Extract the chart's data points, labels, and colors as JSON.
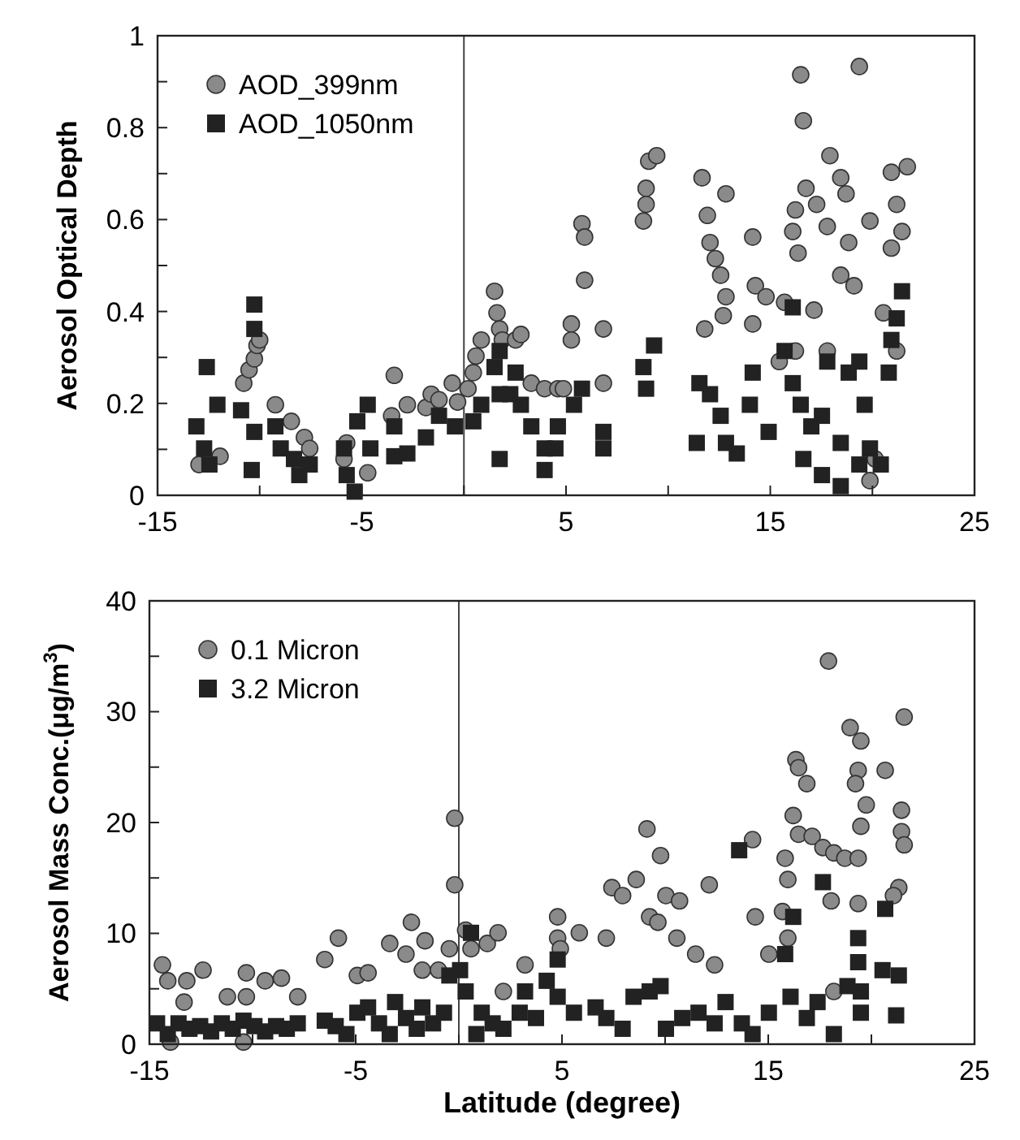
{
  "chart_data": [
    {
      "type": "scatter",
      "ylabel": "Aerosol Optical Depth",
      "xlim": [
        -15,
        25
      ],
      "xticks": [
        -15,
        {
          "value": -10,
          "label": null
        },
        -5,
        {
          "value": 0,
          "label": null
        },
        5,
        {
          "value": 10,
          "label": null
        },
        15,
        {
          "value": 20,
          "label": null
        },
        25
      ],
      "ylim": [
        0,
        1
      ],
      "yticks": [
        0,
        {
          "value": 0.1,
          "label": null
        },
        0.2,
        {
          "value": 0.3,
          "label": null
        },
        0.4,
        {
          "value": 0.5,
          "label": null
        },
        0.6,
        {
          "value": 0.7,
          "label": null
        },
        0.8,
        {
          "value": 0.9,
          "label": null
        },
        1
      ],
      "grid": false,
      "legend": "top left",
      "ref_lines": [
        {
          "axis": "x",
          "value": 0,
          "color": "#444444"
        }
      ],
      "series": [
        {
          "name": "AOD_399nm",
          "color": "#8a8a8a",
          "marker": "circle",
          "x": [
            -12.97,
            -11.94,
            -10.78,
            -10.52,
            -10.26,
            -10.13,
            -10.0,
            -9.23,
            -8.45,
            -7.81,
            -7.55,
            -5.87,
            -5.74,
            -4.71,
            -3.41,
            -3.54,
            -2.77,
            -1.86,
            -1.6,
            -1.22,
            -0.57,
            -0.31,
            0.2,
            0.46,
            0.59,
            0.85,
            1.5,
            1.62,
            1.75,
            1.88,
            2.53,
            2.79,
            3.3,
            3.95,
            4.6,
            4.87,
            5.78,
            5.91,
            5.91,
            5.26,
            5.26,
            6.83,
            6.83,
            8.79,
            8.92,
            9.05,
            9.44,
            8.92,
            11.66,
            11.92,
            12.83,
            12.05,
            12.31,
            12.57,
            12.83,
            12.7,
            14.14,
            14.27,
            14.79,
            15.7,
            11.79,
            14.14,
            16.49,
            16.62,
            16.75,
            16.23,
            16.36,
            16.1,
            17.27,
            17.92,
            18.45,
            18.71,
            17.79,
            18.84,
            18.45,
            19.36,
            19.88,
            19.1,
            20.54,
            17.14,
            20.93,
            21.19,
            21.45,
            21.71,
            20.93,
            21.19,
            20.14,
            19.88,
            15.44,
            16.23,
            17.79
          ],
          "values": [
            0.067,
            0.085,
            0.244,
            0.273,
            0.297,
            0.326,
            0.338,
            0.197,
            0.161,
            0.126,
            0.102,
            0.079,
            0.114,
            0.049,
            0.261,
            0.173,
            0.197,
            0.191,
            0.22,
            0.208,
            0.244,
            0.203,
            0.232,
            0.267,
            0.303,
            0.338,
            0.444,
            0.397,
            0.362,
            0.338,
            0.338,
            0.35,
            0.244,
            0.232,
            0.232,
            0.232,
            0.591,
            0.562,
            0.468,
            0.373,
            0.338,
            0.362,
            0.244,
            0.597,
            0.668,
            0.727,
            0.739,
            0.633,
            0.691,
            0.609,
            0.656,
            0.55,
            0.515,
            0.479,
            0.432,
            0.391,
            0.562,
            0.456,
            0.432,
            0.42,
            0.362,
            0.373,
            0.915,
            0.815,
            0.668,
            0.621,
            0.527,
            0.574,
            0.633,
            0.739,
            0.691,
            0.656,
            0.585,
            0.55,
            0.479,
            0.933,
            0.597,
            0.456,
            0.397,
            0.403,
            0.703,
            0.633,
            0.574,
            0.715,
            0.538,
            0.314,
            0.079,
            0.032,
            0.291,
            0.314,
            0.314
          ]
        },
        {
          "name": "AOD_1050nm",
          "color": "#222222",
          "marker": "square",
          "x": [
            -12.59,
            -13.1,
            -12.72,
            -12.07,
            -12.46,
            -10.26,
            -10.26,
            -10.91,
            -10.26,
            -10.39,
            -9.23,
            -8.97,
            -8.32,
            -8.06,
            -7.55,
            -5.87,
            -5.74,
            -5.35,
            -5.22,
            -4.71,
            -4.58,
            -3.41,
            -2.77,
            -3.41,
            -1.86,
            -1.22,
            -0.44,
            0.46,
            0.85,
            1.5,
            1.75,
            1.75,
            2.27,
            2.53,
            2.79,
            1.75,
            3.3,
            3.95,
            3.95,
            4.6,
            4.48,
            5.39,
            5.78,
            6.83,
            6.83,
            8.79,
            8.92,
            9.31,
            11.53,
            11.4,
            12.05,
            12.57,
            12.83,
            13.36,
            14.14,
            14.0,
            14.92,
            15.7,
            16.1,
            16.1,
            16.49,
            17.01,
            17.53,
            17.79,
            16.62,
            17.53,
            18.45,
            18.45,
            18.84,
            19.36,
            19.62,
            20.41,
            20.93,
            21.19,
            21.45,
            20.8,
            19.88,
            19.36
          ],
          "values": [
            0.279,
            0.15,
            0.102,
            0.197,
            0.067,
            0.415,
            0.362,
            0.185,
            0.138,
            0.055,
            0.15,
            0.102,
            0.079,
            0.044,
            0.067,
            0.102,
            0.044,
            0.008,
            0.161,
            0.197,
            0.102,
            0.085,
            0.091,
            0.15,
            0.126,
            0.173,
            0.15,
            0.161,
            0.197,
            0.279,
            0.314,
            0.22,
            0.22,
            0.267,
            0.197,
            0.079,
            0.15,
            0.102,
            0.055,
            0.15,
            0.102,
            0.197,
            0.232,
            0.138,
            0.102,
            0.279,
            0.232,
            0.326,
            0.244,
            0.114,
            0.22,
            0.173,
            0.114,
            0.091,
            0.267,
            0.197,
            0.138,
            0.314,
            0.244,
            0.409,
            0.197,
            0.15,
            0.173,
            0.291,
            0.079,
            0.044,
            0.02,
            0.114,
            0.267,
            0.291,
            0.197,
            0.067,
            0.338,
            0.385,
            0.444,
            0.267,
            0.102,
            0.067
          ]
        }
      ]
    },
    {
      "type": "scatter",
      "xlabel": "Latitude (degree)",
      "ylabel": "Aerosol Mass Conc.(μg/m$^{3}$)",
      "xlim": [
        -15,
        25
      ],
      "xticks": [
        -15,
        {
          "value": -10,
          "label": null
        },
        -5,
        {
          "value": 0,
          "label": null
        },
        5,
        {
          "value": 10,
          "label": null
        },
        15,
        {
          "value": 20,
          "label": null
        },
        25
      ],
      "ylim": [
        0,
        40
      ],
      "yticks": [
        0,
        {
          "value": 5,
          "label": null
        },
        10,
        {
          "value": 15,
          "label": null
        },
        20,
        {
          "value": 25,
          "label": null
        },
        30,
        {
          "value": 35,
          "label": null
        },
        40
      ],
      "grid": false,
      "legend": "top left",
      "ref_lines": [
        {
          "axis": "x",
          "value": 0,
          "color": "#444444"
        }
      ],
      "series": [
        {
          "name": "0.1 Micron",
          "color": "#8a8a8a",
          "marker": "circle",
          "x": [
            -14.37,
            -14.11,
            -13.19,
            -12.4,
            -13.32,
            -11.22,
            -10.3,
            -10.3,
            -9.39,
            -8.6,
            -7.81,
            -6.5,
            -5.84,
            -4.92,
            -4.4,
            -3.35,
            -2.56,
            -2.3,
            -1.64,
            -1.77,
            -0.99,
            -0.46,
            -0.2,
            -0.2,
            0.33,
            0.59,
            1.38,
            1.9,
            2.16,
            3.21,
            4.79,
            4.79,
            -13.98,
            -10.44,
            4.92,
            5.84,
            7.15,
            7.42,
            7.94,
            8.6,
            9.12,
            9.25,
            9.65,
            9.78,
            10.04,
            10.7,
            10.57,
            12.14,
            11.48,
            12.4,
            14.37,
            14.24,
            15.03,
            15.69,
            15.95,
            15.95,
            15.82,
            16.21,
            16.34,
            16.47,
            16.87,
            16.47,
            17.13,
            17.65,
            18.18,
            18.71,
            19.36,
            17.92,
            18.05,
            19.36,
            18.97,
            19.49,
            20.67,
            19.36,
            19.23,
            19.75,
            19.49,
            21.59,
            21.46,
            21.46,
            21.59,
            21.33,
            21.07,
            18.18
          ],
          "values": [
            7.16,
            5.72,
            5.72,
            6.68,
            3.8,
            4.28,
            6.44,
            4.28,
            5.72,
            5.96,
            4.28,
            7.64,
            9.57,
            6.2,
            6.44,
            9.09,
            8.13,
            11.0,
            9.33,
            6.68,
            6.68,
            8.61,
            20.38,
            14.38,
            10.29,
            8.61,
            9.09,
            10.05,
            4.76,
            7.16,
            11.49,
            9.57,
            0.19,
            0.19,
            8.61,
            10.05,
            9.57,
            14.13,
            13.41,
            14.86,
            19.42,
            11.49,
            11.0,
            17.02,
            13.41,
            12.93,
            9.57,
            14.38,
            8.13,
            7.16,
            11.49,
            18.46,
            8.13,
            11.97,
            9.57,
            14.86,
            16.78,
            20.63,
            25.67,
            24.95,
            23.51,
            18.94,
            18.75,
            17.74,
            17.26,
            16.78,
            16.78,
            34.57,
            12.93,
            12.69,
            28.56,
            27.36,
            24.71,
            24.71,
            23.51,
            21.59,
            19.66,
            29.52,
            21.11,
            19.18,
            17.98,
            14.13,
            13.41,
            4.76
          ]
        },
        {
          "name": "3.2 Micron",
          "color": "#222222",
          "marker": "square",
          "x": [
            -14.63,
            -14.11,
            -13.59,
            -13.06,
            -12.54,
            -12.01,
            -11.49,
            -10.96,
            -10.44,
            -9.91,
            -9.39,
            -8.86,
            -8.34,
            -7.81,
            -6.5,
            -5.97,
            -5.45,
            -4.92,
            -4.4,
            -3.87,
            -3.35,
            -3.09,
            -2.56,
            -2.04,
            -1.77,
            -1.25,
            -0.72,
            -0.46,
            0.06,
            0.33,
            0.59,
            0.85,
            1.11,
            1.64,
            2.16,
            2.95,
            3.21,
            3.74,
            4.26,
            4.79,
            4.79,
            5.58,
            6.63,
            7.15,
            7.94,
            8.47,
            9.25,
            9.78,
            10.04,
            10.83,
            11.62,
            12.4,
            12.93,
            13.59,
            13.72,
            14.24,
            15.03,
            15.82,
            16.21,
            16.08,
            16.87,
            17.65,
            17.39,
            18.18,
            18.84,
            19.36,
            19.36,
            19.49,
            20.67,
            20.54,
            21.33,
            21.2,
            19.49
          ],
          "values": [
            1.88,
            0.91,
            1.88,
            1.39,
            1.63,
            1.15,
            1.88,
            1.39,
            2.12,
            1.63,
            1.15,
            1.63,
            1.39,
            1.88,
            2.12,
            1.63,
            0.91,
            2.84,
            3.32,
            1.88,
            0.91,
            3.8,
            2.36,
            1.39,
            3.32,
            1.88,
            2.84,
            6.2,
            6.68,
            4.76,
            10.05,
            0.91,
            2.84,
            1.88,
            1.39,
            2.84,
            4.76,
            2.36,
            5.72,
            7.64,
            4.28,
            2.84,
            3.32,
            2.36,
            1.39,
            4.28,
            4.76,
            5.24,
            1.39,
            2.36,
            2.84,
            1.88,
            3.8,
            17.5,
            1.88,
            0.91,
            2.84,
            8.13,
            11.49,
            4.28,
            2.36,
            14.62,
            3.8,
            0.91,
            5.24,
            9.57,
            7.4,
            2.84,
            12.21,
            6.68,
            6.2,
            2.6,
            4.76
          ]
        }
      ]
    }
  ]
}
